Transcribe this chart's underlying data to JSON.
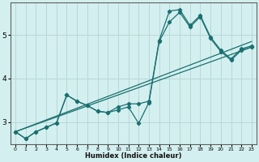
{
  "xlabel": "Humidex (Indice chaleur)",
  "bg_color": "#d4efef",
  "grid_color": "#b8d8d8",
  "line_color": "#1a7070",
  "xlim": [
    -0.5,
    23.5
  ],
  "ylim": [
    2.5,
    5.75
  ],
  "yticks": [
    3,
    4,
    5
  ],
  "xticks": [
    0,
    1,
    2,
    3,
    4,
    5,
    6,
    7,
    8,
    9,
    10,
    11,
    12,
    13,
    14,
    15,
    16,
    17,
    18,
    19,
    20,
    21,
    22,
    23
  ],
  "series1_x": [
    0,
    1,
    2,
    3,
    4,
    5,
    6,
    7,
    8,
    9,
    10,
    11,
    12,
    13,
    14,
    15,
    16,
    17,
    18,
    19,
    20,
    21,
    22,
    23
  ],
  "series1_y": [
    2.78,
    2.62,
    2.78,
    2.88,
    2.98,
    3.62,
    3.48,
    3.38,
    3.25,
    3.22,
    3.28,
    3.35,
    2.97,
    3.45,
    4.85,
    5.3,
    5.52,
    5.18,
    5.42,
    4.92,
    4.62,
    4.42,
    4.65,
    4.72
  ],
  "series2_x": [
    0,
    1,
    2,
    3,
    4,
    5,
    6,
    7,
    8,
    9,
    10,
    11,
    12,
    13,
    14,
    15,
    16,
    17,
    18,
    19,
    20,
    21,
    22,
    23
  ],
  "series2_y": [
    2.78,
    2.62,
    2.78,
    2.88,
    2.98,
    3.62,
    3.48,
    3.38,
    3.25,
    3.22,
    3.35,
    3.42,
    3.42,
    3.48,
    4.88,
    5.55,
    5.58,
    5.22,
    5.45,
    4.95,
    4.65,
    4.45,
    4.68,
    4.75
  ],
  "series3_x": [
    0,
    23
  ],
  "series3_y": [
    2.78,
    4.85
  ],
  "series4_x": [
    0,
    23
  ],
  "series4_y": [
    2.78,
    4.72
  ]
}
